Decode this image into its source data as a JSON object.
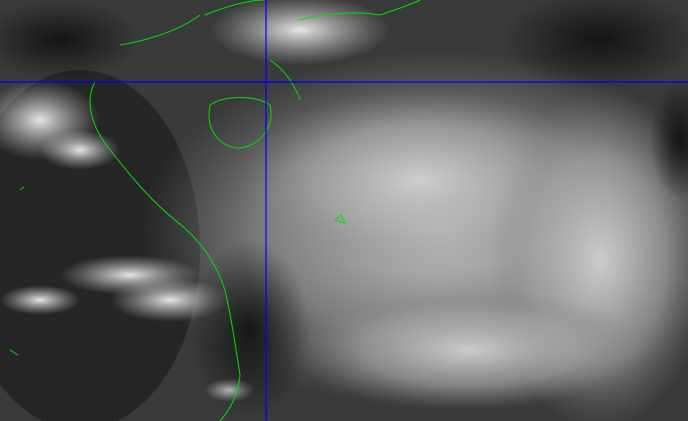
{
  "image": {
    "kind": "satellite-imagery",
    "colors": {
      "background": "#1e1e1e",
      "cloud": "#d8d8d8",
      "coastline": "#00e000",
      "gridline": "#0000ff"
    }
  }
}
